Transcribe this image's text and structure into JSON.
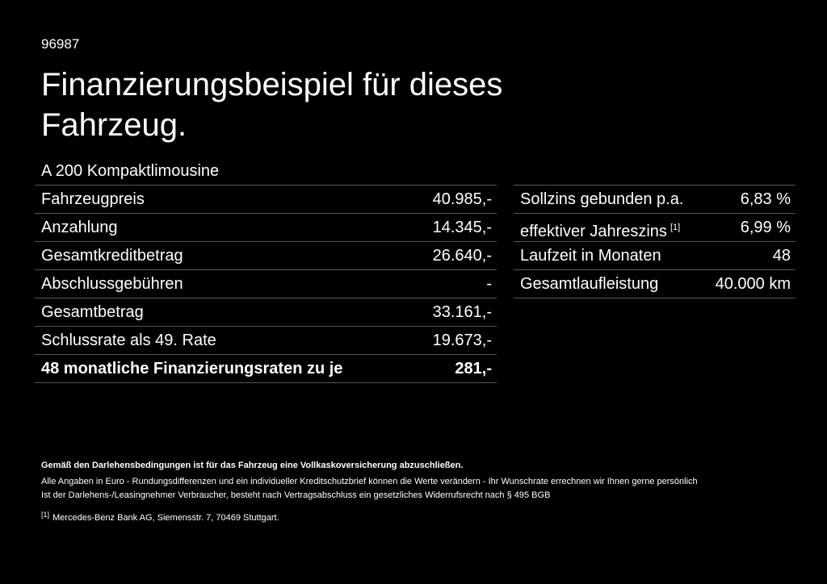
{
  "header": {
    "code": "96987",
    "title_lines": [
      "Finanzierungsbeispiel für dieses",
      "Fahrzeug."
    ],
    "model": "A 200 Kompaktlimousine"
  },
  "left_table": {
    "rows": [
      [
        "Fahrzeugpreis",
        "40.985,-"
      ],
      [
        "Anzahlung",
        "14.345,-"
      ],
      [
        "Gesamtkreditbetrag",
        "26.640,-"
      ],
      [
        "Abschlussgebühren",
        "-"
      ],
      [
        "Gesamtbetrag",
        "33.161,-"
      ],
      [
        "Schlussrate als 49. Rate",
        "19.673,-"
      ],
      [
        "48 monatliche Finanzierungsraten zu je",
        "281,-"
      ]
    ]
  },
  "right_table": {
    "rows": [
      {
        "label": "Sollzins gebunden p.a.",
        "value": "6,83 %"
      },
      {
        "label": "effektiver Jahreszins",
        "sup": "[1]",
        "value": "6,99 %"
      },
      {
        "label": "Laufzeit in Monaten",
        "value": "48"
      },
      {
        "label": "Gesamtlaufleistung",
        "value": "40.000 km"
      }
    ]
  },
  "notes": {
    "bold": "Gemäß den Darlehensbedingungen ist für das Fahrzeug eine Vollkaskoversicherung abzuschließen.",
    "lines": [
      "Alle Angaben in Euro - Rundungsdifferenzen und ein individueller Kreditschutzbrief können die Werte verändern - Ihr Wunschrate errechnen wir Ihnen gerne persönlich",
      "Ist der Darlehens-/Leasingnehmer Verbraucher, besteht nach Vertragsabschluss ein gesetzliches Widerrufsrecht nach § 495 BGB"
    ],
    "footnote_mark": "[1]",
    "footnote": "Mercedes-Benz Bank AG, Siemensstr. 7, 70469 Stuttgart."
  }
}
